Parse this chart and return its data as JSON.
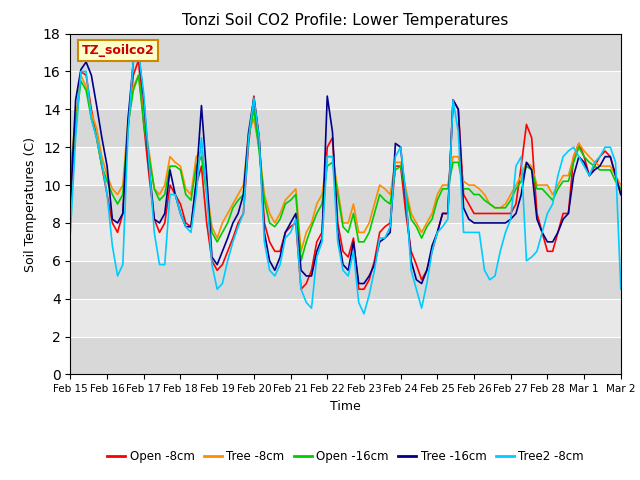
{
  "title": "Tonzi Soil CO2 Profile: Lower Temperatures",
  "xlabel": "Time",
  "ylabel": "Soil Temperatures (C)",
  "ylim": [
    0,
    18
  ],
  "yticks": [
    0,
    2,
    4,
    6,
    8,
    10,
    12,
    14,
    16,
    18
  ],
  "xtick_labels": [
    "Feb 15",
    "Feb 16",
    "Feb 17",
    "Feb 18",
    "Feb 19",
    "Feb 20",
    "Feb 21",
    "Feb 22",
    "Feb 23",
    "Feb 24",
    "Feb 25",
    "Feb 26",
    "Feb 27",
    "Feb 28",
    "Mar 1",
    "Mar 2"
  ],
  "watermark_text": "TZ_soilco2",
  "background_color": "#ffffff",
  "plot_bg_color": "#e8e8e8",
  "series_colors": [
    "#ff0000",
    "#ff8c00",
    "#00cc00",
    "#00008b",
    "#00ccff"
  ],
  "series_labels": [
    "Open -8cm",
    "Tree -8cm",
    "Open -16cm",
    "Tree -16cm",
    "Tree2 -8cm"
  ],
  "open8": [
    9.2,
    13.0,
    16.0,
    15.8,
    14.0,
    12.5,
    11.0,
    9.5,
    8.0,
    7.5,
    8.5,
    13.0,
    15.8,
    16.6,
    13.2,
    10.5,
    8.2,
    7.5,
    8.0,
    10.0,
    9.5,
    9.0,
    8.0,
    7.8,
    10.0,
    11.0,
    8.0,
    6.0,
    5.5,
    5.8,
    6.5,
    7.2,
    8.0,
    8.5,
    12.2,
    14.7,
    12.5,
    8.0,
    7.0,
    6.5,
    6.5,
    7.5,
    7.8,
    8.0,
    4.5,
    4.8,
    5.5,
    7.0,
    7.5,
    12.0,
    12.5,
    8.0,
    6.5,
    6.2,
    7.2,
    4.5,
    4.5,
    5.0,
    6.0,
    7.5,
    7.8,
    8.0,
    11.0,
    11.0,
    8.5,
    6.5,
    5.8,
    5.0,
    5.5,
    6.5,
    7.5,
    8.5,
    8.5,
    14.5,
    14.0,
    9.5,
    9.0,
    8.5,
    8.5,
    8.5,
    8.5,
    8.5,
    8.5,
    8.5,
    8.5,
    9.0,
    11.0,
    13.2,
    12.5,
    8.5,
    7.5,
    6.5,
    6.5,
    7.5,
    8.5,
    8.5,
    11.5,
    12.2,
    11.5,
    10.5,
    11.0,
    11.5,
    11.8,
    11.5,
    10.5,
    9.5
  ],
  "tree8": [
    11.0,
    13.5,
    15.8,
    15.2,
    13.8,
    13.0,
    11.5,
    10.5,
    9.8,
    9.5,
    10.0,
    13.5,
    15.2,
    15.8,
    13.5,
    11.8,
    9.8,
    9.5,
    10.0,
    11.5,
    11.2,
    11.0,
    9.8,
    9.5,
    11.5,
    11.8,
    9.8,
    7.8,
    7.2,
    8.0,
    8.5,
    9.0,
    9.5,
    10.0,
    12.8,
    13.5,
    12.0,
    9.5,
    8.5,
    8.0,
    8.5,
    9.2,
    9.5,
    9.8,
    6.5,
    7.5,
    8.0,
    9.0,
    9.5,
    11.5,
    11.5,
    9.8,
    8.0,
    8.0,
    9.0,
    7.5,
    7.5,
    8.0,
    9.0,
    10.0,
    9.8,
    9.5,
    11.2,
    11.2,
    9.8,
    8.5,
    8.0,
    7.5,
    8.0,
    8.5,
    9.5,
    10.0,
    10.0,
    11.5,
    11.5,
    10.2,
    10.0,
    10.0,
    9.8,
    9.5,
    9.0,
    8.8,
    8.8,
    9.0,
    9.5,
    10.0,
    10.5,
    11.2,
    11.0,
    10.0,
    10.0,
    10.0,
    9.5,
    10.0,
    10.5,
    10.5,
    11.5,
    12.2,
    11.8,
    11.5,
    11.2,
    11.0,
    11.0,
    11.0,
    10.5,
    10.0
  ],
  "open16": [
    10.5,
    13.2,
    15.5,
    15.0,
    13.5,
    12.5,
    11.0,
    10.2,
    9.5,
    9.0,
    9.5,
    13.2,
    15.0,
    15.8,
    13.2,
    11.5,
    9.8,
    9.2,
    9.5,
    11.0,
    11.0,
    10.8,
    9.5,
    9.2,
    11.0,
    11.5,
    9.5,
    7.5,
    7.0,
    7.5,
    8.0,
    8.8,
    9.2,
    9.5,
    12.5,
    14.0,
    11.8,
    9.2,
    8.0,
    7.8,
    8.2,
    9.0,
    9.2,
    9.5,
    6.0,
    7.0,
    7.8,
    8.5,
    9.0,
    11.0,
    11.2,
    9.5,
    7.8,
    7.5,
    8.5,
    7.0,
    7.0,
    7.5,
    8.5,
    9.5,
    9.2,
    9.0,
    10.8,
    11.0,
    9.5,
    8.2,
    7.8,
    7.2,
    7.8,
    8.2,
    9.2,
    9.8,
    9.8,
    11.2,
    11.2,
    9.8,
    9.8,
    9.5,
    9.5,
    9.2,
    9.0,
    8.8,
    8.8,
    8.8,
    9.2,
    9.8,
    10.2,
    11.0,
    10.8,
    9.8,
    9.8,
    9.5,
    9.2,
    9.8,
    10.2,
    10.2,
    11.2,
    12.0,
    11.5,
    11.2,
    11.0,
    10.8,
    10.8,
    10.8,
    10.2,
    9.8
  ],
  "tree16": [
    9.0,
    14.5,
    16.1,
    16.5,
    15.8,
    14.2,
    12.5,
    11.0,
    8.2,
    8.0,
    8.5,
    13.5,
    16.5,
    17.0,
    14.5,
    11.0,
    8.2,
    8.0,
    8.5,
    10.8,
    9.5,
    8.5,
    7.8,
    7.8,
    10.2,
    14.2,
    10.5,
    6.2,
    5.8,
    6.5,
    7.2,
    8.0,
    8.5,
    9.5,
    12.8,
    14.6,
    12.5,
    7.5,
    6.0,
    5.5,
    6.2,
    7.5,
    8.0,
    8.5,
    5.5,
    5.2,
    5.2,
    6.5,
    7.2,
    14.7,
    12.8,
    7.5,
    5.8,
    5.5,
    7.0,
    4.8,
    4.8,
    5.2,
    5.8,
    7.0,
    7.2,
    7.5,
    12.2,
    12.0,
    9.2,
    6.0,
    5.0,
    4.8,
    5.5,
    6.8,
    7.5,
    8.5,
    8.5,
    14.5,
    14.0,
    8.8,
    8.2,
    8.0,
    8.0,
    8.0,
    8.0,
    8.0,
    8.0,
    8.0,
    8.2,
    8.5,
    9.5,
    11.2,
    10.8,
    8.2,
    7.5,
    7.0,
    7.0,
    7.5,
    8.2,
    8.5,
    10.5,
    11.5,
    11.2,
    10.5,
    10.8,
    11.0,
    11.5,
    11.5,
    10.5,
    9.5
  ],
  "tree2_8": [
    7.5,
    12.5,
    16.0,
    16.0,
    13.5,
    12.5,
    11.2,
    9.5,
    6.8,
    5.2,
    5.8,
    12.8,
    16.6,
    17.0,
    14.8,
    11.2,
    7.5,
    5.8,
    5.8,
    9.5,
    9.5,
    8.5,
    7.8,
    7.5,
    9.5,
    12.5,
    9.5,
    5.8,
    4.5,
    4.8,
    6.0,
    7.0,
    7.8,
    8.5,
    12.5,
    14.6,
    12.5,
    7.0,
    5.5,
    5.2,
    5.8,
    7.2,
    7.5,
    8.2,
    4.5,
    3.8,
    3.5,
    6.2,
    7.0,
    11.5,
    11.5,
    7.0,
    5.5,
    5.2,
    6.5,
    3.8,
    3.2,
    4.2,
    5.5,
    7.2,
    7.2,
    7.8,
    11.5,
    12.0,
    9.5,
    5.5,
    4.5,
    3.5,
    4.8,
    6.5,
    7.5,
    7.8,
    8.2,
    14.5,
    12.8,
    7.5,
    7.5,
    7.5,
    7.5,
    5.5,
    5.0,
    5.2,
    6.5,
    7.5,
    8.2,
    11.0,
    11.5,
    6.0,
    6.2,
    6.5,
    7.5,
    8.5,
    9.0,
    10.5,
    11.5,
    11.8,
    12.0,
    11.5,
    11.0,
    10.5,
    11.2,
    11.5,
    12.0,
    12.0,
    11.2,
    4.5
  ]
}
